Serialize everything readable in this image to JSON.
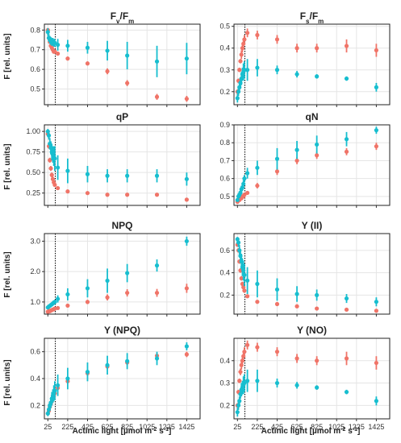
{
  "figure": {
    "ylabel": "F [rel. units]",
    "xlabel": "Actinic light [µmol m",
    "xlabel_sup1": "-2",
    "xlabel_mid": " s",
    "xlabel_sup2": "-1",
    "xlabel_end": "]",
    "x_ticks": [
      "25",
      "225",
      "425",
      "625",
      "825",
      "1025",
      "1225",
      "1425"
    ],
    "x_tick_values": [
      25,
      225,
      425,
      625,
      825,
      1025,
      1225,
      1425
    ],
    "xlim": [
      -10,
      1560
    ],
    "vline_x": 100,
    "colors": {
      "teal": "#17becf",
      "salmon": "#f07468",
      "grid": "#e5e5e5",
      "vline": "#000000"
    },
    "grid": true
  },
  "chart_data": [
    {
      "type": "scatter",
      "title_main": "F",
      "title_sub1": "v",
      "title_mid": "/F",
      "title_sub2": "m",
      "ylim": [
        0.42,
        0.83
      ],
      "yticks": [
        0.5,
        0.6,
        0.7,
        0.8
      ],
      "yticklabels": [
        "0.5",
        "0.6",
        "0.7",
        "0.8"
      ],
      "series": [
        {
          "color": "teal",
          "x": [
            25,
            35,
            45,
            55,
            65,
            75,
            85,
            95,
            125,
            225,
            425,
            625,
            825,
            1125,
            1425
          ],
          "y": [
            0.79,
            0.76,
            0.75,
            0.745,
            0.74,
            0.74,
            0.735,
            0.735,
            0.725,
            0.72,
            0.71,
            0.695,
            0.67,
            0.64,
            0.655
          ],
          "err": [
            0.02,
            0.02,
            0.02,
            0.02,
            0.02,
            0.02,
            0.02,
            0.02,
            0.03,
            0.03,
            0.03,
            0.05,
            0.07,
            0.08,
            0.08
          ]
        },
        {
          "color": "salmon",
          "x": [
            25,
            35,
            45,
            55,
            65,
            75,
            85,
            95,
            125,
            225,
            425,
            625,
            825,
            1125,
            1425
          ],
          "y": [
            0.8,
            0.76,
            0.74,
            0.72,
            0.71,
            0.7,
            0.69,
            0.69,
            0.68,
            0.655,
            0.63,
            0.59,
            0.53,
            0.46,
            0.45
          ],
          "err": [
            0.01,
            0.01,
            0.01,
            0.01,
            0.01,
            0.01,
            0.01,
            0.01,
            0.01,
            0.01,
            0.01,
            0.015,
            0.015,
            0.015,
            0.015
          ]
        }
      ]
    },
    {
      "type": "scatter",
      "title_main": "F",
      "title_sub1": "s",
      "title_mid": "/F",
      "title_sub2": "m",
      "ylim": [
        0.14,
        0.51
      ],
      "yticks": [
        0.2,
        0.3,
        0.4,
        0.5
      ],
      "yticklabels": [
        "0.2",
        "0.3",
        "0.4",
        "0.5"
      ],
      "series": [
        {
          "color": "teal",
          "x": [
            25,
            35,
            45,
            55,
            65,
            75,
            85,
            95,
            125,
            225,
            425,
            625,
            825,
            1125,
            1425
          ],
          "y": [
            0.17,
            0.2,
            0.22,
            0.24,
            0.26,
            0.28,
            0.29,
            0.3,
            0.3,
            0.31,
            0.3,
            0.28,
            0.27,
            0.26,
            0.22
          ],
          "err": [
            0.02,
            0.02,
            0.02,
            0.02,
            0.03,
            0.03,
            0.04,
            0.04,
            0.05,
            0.04,
            0.02,
            0.015,
            0.01,
            0.01,
            0.02
          ]
        },
        {
          "color": "salmon",
          "x": [
            25,
            35,
            45,
            55,
            65,
            75,
            85,
            95,
            125,
            225,
            425,
            625,
            825,
            1125,
            1425
          ],
          "y": [
            0.2,
            0.25,
            0.3,
            0.34,
            0.37,
            0.4,
            0.42,
            0.44,
            0.47,
            0.46,
            0.44,
            0.4,
            0.4,
            0.41,
            0.39
          ],
          "err": [
            0.01,
            0.01,
            0.01,
            0.01,
            0.02,
            0.02,
            0.02,
            0.02,
            0.02,
            0.02,
            0.02,
            0.02,
            0.02,
            0.03,
            0.03
          ]
        }
      ]
    },
    {
      "type": "scatter",
      "title_main": "qP",
      "ylim": [
        0.1,
        1.08
      ],
      "yticks": [
        0.25,
        0.5,
        0.75,
        1.0
      ],
      "yticklabels": [
        "0.25",
        "0.50",
        "0.75",
        "1.00"
      ],
      "series": [
        {
          "color": "teal",
          "x": [
            25,
            35,
            45,
            55,
            65,
            75,
            85,
            95,
            125,
            225,
            425,
            625,
            825,
            1125,
            1425
          ],
          "y": [
            1.0,
            0.95,
            0.85,
            0.8,
            0.75,
            0.72,
            0.7,
            0.67,
            0.56,
            0.52,
            0.48,
            0.46,
            0.46,
            0.46,
            0.42
          ],
          "err": [
            0.03,
            0.05,
            0.07,
            0.08,
            0.1,
            0.1,
            0.12,
            0.15,
            0.15,
            0.15,
            0.1,
            0.08,
            0.08,
            0.08,
            0.08
          ]
        },
        {
          "color": "salmon",
          "x": [
            25,
            35,
            45,
            55,
            65,
            75,
            85,
            95,
            125,
            225,
            425,
            625,
            825,
            1125,
            1425
          ],
          "y": [
            0.97,
            0.82,
            0.65,
            0.55,
            0.47,
            0.42,
            0.38,
            0.35,
            0.31,
            0.27,
            0.25,
            0.23,
            0.23,
            0.23,
            0.17
          ],
          "err": [
            0.02,
            0.03,
            0.03,
            0.03,
            0.03,
            0.03,
            0.02,
            0.02,
            0.02,
            0.02,
            0.02,
            0.02,
            0.02,
            0.02,
            0.02
          ]
        }
      ]
    },
    {
      "type": "scatter",
      "title_main": "qN",
      "ylim": [
        0.45,
        0.9
      ],
      "yticks": [
        0.5,
        0.6,
        0.7,
        0.8,
        0.9
      ],
      "yticklabels": [
        "0.5",
        "0.6",
        "0.7",
        "0.8",
        "0.9"
      ],
      "series": [
        {
          "color": "teal",
          "x": [
            25,
            35,
            45,
            55,
            65,
            75,
            85,
            95,
            125,
            225,
            425,
            625,
            825,
            1125,
            1425
          ],
          "y": [
            0.48,
            0.5,
            0.51,
            0.52,
            0.54,
            0.55,
            0.57,
            0.6,
            0.63,
            0.66,
            0.71,
            0.76,
            0.79,
            0.82,
            0.87
          ],
          "err": [
            0.01,
            0.01,
            0.02,
            0.02,
            0.02,
            0.02,
            0.02,
            0.02,
            0.03,
            0.04,
            0.06,
            0.05,
            0.05,
            0.04,
            0.02
          ]
        },
        {
          "color": "salmon",
          "x": [
            25,
            35,
            45,
            55,
            65,
            75,
            85,
            95,
            125,
            225,
            425,
            625,
            825,
            1125,
            1425
          ],
          "y": [
            0.47,
            0.48,
            0.48,
            0.49,
            0.49,
            0.5,
            0.5,
            0.51,
            0.52,
            0.56,
            0.64,
            0.7,
            0.73,
            0.75,
            0.78
          ],
          "err": [
            0.01,
            0.01,
            0.01,
            0.01,
            0.01,
            0.01,
            0.01,
            0.01,
            0.01,
            0.015,
            0.02,
            0.02,
            0.02,
            0.02,
            0.02
          ]
        }
      ]
    },
    {
      "type": "scatter",
      "title_main": "NPQ",
      "ylim": [
        0.6,
        3.25
      ],
      "yticks": [
        1.0,
        2.0,
        3.0
      ],
      "yticklabels": [
        "1.0",
        "2.0",
        "3.0"
      ],
      "series": [
        {
          "color": "teal",
          "x": [
            25,
            35,
            45,
            55,
            65,
            75,
            85,
            95,
            125,
            225,
            425,
            625,
            825,
            1125,
            1425
          ],
          "y": [
            0.82,
            0.85,
            0.87,
            0.9,
            0.92,
            0.95,
            0.98,
            1.0,
            1.1,
            1.25,
            1.45,
            1.7,
            1.95,
            2.2,
            3.0
          ],
          "err": [
            0.03,
            0.03,
            0.04,
            0.05,
            0.05,
            0.06,
            0.06,
            0.07,
            0.12,
            0.2,
            0.3,
            0.4,
            0.3,
            0.2,
            0.15
          ]
        },
        {
          "color": "salmon",
          "x": [
            25,
            35,
            45,
            55,
            65,
            75,
            85,
            95,
            125,
            225,
            425,
            625,
            825,
            1125,
            1425
          ],
          "y": [
            0.68,
            0.7,
            0.7,
            0.72,
            0.73,
            0.75,
            0.76,
            0.78,
            0.8,
            0.88,
            1.0,
            1.15,
            1.3,
            1.3,
            1.45
          ],
          "err": [
            0.02,
            0.02,
            0.02,
            0.02,
            0.02,
            0.02,
            0.02,
            0.03,
            0.03,
            0.05,
            0.07,
            0.1,
            0.12,
            0.13,
            0.15
          ]
        }
      ]
    },
    {
      "type": "scatter",
      "title_main": "Y (II)",
      "ylim": [
        0.03,
        0.75
      ],
      "yticks": [
        0.2,
        0.4,
        0.6
      ],
      "yticklabels": [
        "0.2",
        "0.4",
        "0.6"
      ],
      "series": [
        {
          "color": "teal",
          "x": [
            25,
            35,
            45,
            55,
            65,
            75,
            85,
            95,
            125,
            225,
            425,
            625,
            825,
            1125,
            1425
          ],
          "y": [
            0.7,
            0.67,
            0.6,
            0.55,
            0.5,
            0.45,
            0.42,
            0.38,
            0.33,
            0.3,
            0.25,
            0.21,
            0.2,
            0.17,
            0.14
          ],
          "err": [
            0.02,
            0.04,
            0.05,
            0.06,
            0.07,
            0.08,
            0.09,
            0.1,
            0.12,
            0.12,
            0.1,
            0.07,
            0.05,
            0.04,
            0.04
          ]
        },
        {
          "color": "salmon",
          "x": [
            25,
            35,
            45,
            55,
            65,
            75,
            85,
            95,
            125,
            225,
            425,
            625,
            825,
            1125,
            1425
          ],
          "y": [
            0.65,
            0.6,
            0.5,
            0.42,
            0.35,
            0.3,
            0.27,
            0.24,
            0.19,
            0.14,
            0.12,
            0.1,
            0.08,
            0.07,
            0.06
          ],
          "err": [
            0.01,
            0.02,
            0.02,
            0.02,
            0.02,
            0.02,
            0.02,
            0.02,
            0.015,
            0.01,
            0.01,
            0.01,
            0.01,
            0.01,
            0.01
          ]
        }
      ]
    },
    {
      "type": "scatter",
      "title_main": "Y (NPQ)",
      "ylim": [
        0.1,
        0.7
      ],
      "yticks": [
        0.2,
        0.4,
        0.6
      ],
      "yticklabels": [
        "0.2",
        "0.4",
        "0.6"
      ],
      "series": [
        {
          "color": "teal",
          "x": [
            25,
            35,
            45,
            55,
            65,
            75,
            85,
            95,
            125,
            225,
            425,
            625,
            825,
            1125,
            1425
          ],
          "y": [
            0.14,
            0.17,
            0.2,
            0.22,
            0.25,
            0.27,
            0.29,
            0.31,
            0.35,
            0.4,
            0.45,
            0.5,
            0.53,
            0.55,
            0.64
          ],
          "err": [
            0.02,
            0.02,
            0.03,
            0.04,
            0.05,
            0.05,
            0.06,
            0.07,
            0.08,
            0.08,
            0.07,
            0.07,
            0.06,
            0.05,
            0.03
          ]
        },
        {
          "color": "salmon",
          "x": [
            25,
            35,
            45,
            55,
            65,
            75,
            85,
            95,
            125,
            225,
            425,
            625,
            825,
            1125,
            1425
          ],
          "y": [
            0.14,
            0.16,
            0.19,
            0.21,
            0.23,
            0.25,
            0.27,
            0.29,
            0.33,
            0.38,
            0.44,
            0.49,
            0.52,
            0.57,
            0.58
          ],
          "err": [
            0.01,
            0.01,
            0.01,
            0.01,
            0.01,
            0.01,
            0.01,
            0.01,
            0.015,
            0.015,
            0.02,
            0.02,
            0.02,
            0.02,
            0.02
          ]
        }
      ]
    },
    {
      "type": "scatter",
      "title_main": "Y (NO)",
      "ylim": [
        0.14,
        0.5
      ],
      "yticks": [
        0.2,
        0.3,
        0.4
      ],
      "yticklabels": [
        "0.2",
        "0.3",
        "0.4"
      ],
      "series": [
        {
          "color": "teal",
          "x": [
            25,
            35,
            45,
            55,
            65,
            75,
            85,
            95,
            125,
            225,
            425,
            625,
            825,
            1125,
            1425
          ],
          "y": [
            0.17,
            0.2,
            0.22,
            0.25,
            0.27,
            0.28,
            0.29,
            0.3,
            0.31,
            0.31,
            0.3,
            0.29,
            0.28,
            0.26,
            0.22
          ],
          "err": [
            0.02,
            0.02,
            0.02,
            0.02,
            0.03,
            0.03,
            0.04,
            0.04,
            0.05,
            0.05,
            0.02,
            0.015,
            0.01,
            0.01,
            0.02
          ]
        },
        {
          "color": "salmon",
          "x": [
            25,
            35,
            45,
            55,
            65,
            75,
            85,
            95,
            125,
            225,
            425,
            625,
            825,
            1125,
            1425
          ],
          "y": [
            0.2,
            0.26,
            0.31,
            0.35,
            0.38,
            0.4,
            0.42,
            0.44,
            0.47,
            0.46,
            0.44,
            0.41,
            0.4,
            0.41,
            0.39
          ],
          "err": [
            0.01,
            0.01,
            0.01,
            0.015,
            0.02,
            0.02,
            0.02,
            0.02,
            0.02,
            0.02,
            0.02,
            0.02,
            0.02,
            0.03,
            0.03
          ]
        }
      ]
    }
  ]
}
